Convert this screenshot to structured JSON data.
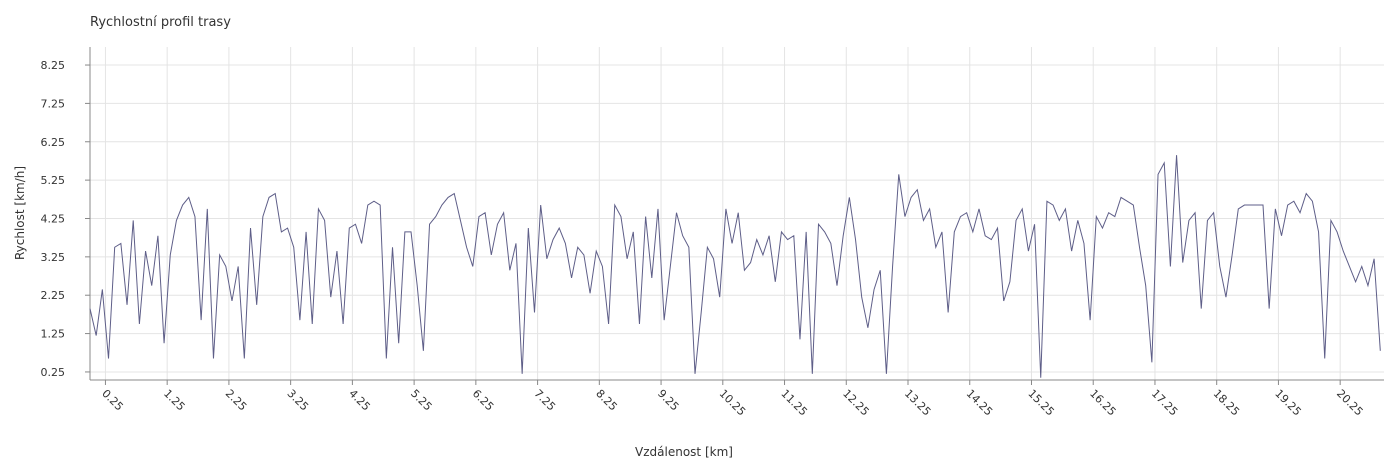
{
  "chart_data": {
    "type": "line",
    "title": "Rychlostní profil trasy",
    "x_label": "Vzdálenost [km]",
    "y_label": "Rychlost [km/h]",
    "xlim": [
      0,
      20.96
    ],
    "ylim": [
      0.04,
      8.72
    ],
    "xticks": [
      0.25,
      1.25,
      2.25,
      3.25,
      4.25,
      5.25,
      6.25,
      7.25,
      8.25,
      9.25,
      10.25,
      11.25,
      12.25,
      13.25,
      14.25,
      15.25,
      16.25,
      17.25,
      18.25,
      19.25,
      20.25
    ],
    "yticks": [
      0.25,
      1.25,
      2.25,
      3.25,
      4.25,
      5.25,
      6.25,
      7.25,
      8.25
    ],
    "grid": true,
    "x": [
      0,
      0.1,
      0.2,
      0.3,
      0.4,
      0.5,
      0.6,
      0.7,
      0.8,
      0.9,
      1,
      1.1,
      1.2,
      1.3,
      1.4,
      1.5,
      1.6,
      1.7,
      1.8,
      1.9,
      2,
      2.1,
      2.2,
      2.3,
      2.4,
      2.5,
      2.6,
      2.7,
      2.8,
      2.9,
      3,
      3.1,
      3.2,
      3.3,
      3.4,
      3.5,
      3.6,
      3.7,
      3.8,
      3.9,
      4,
      4.1,
      4.2,
      4.3,
      4.4,
      4.5,
      4.6,
      4.7,
      4.8,
      4.9,
      5,
      5.1,
      5.2,
      5.3,
      5.4,
      5.5,
      5.6,
      5.7,
      5.8,
      5.9,
      6,
      6.1,
      6.2,
      6.3,
      6.4,
      6.5,
      6.6,
      6.7,
      6.8,
      6.9,
      7,
      7.1,
      7.2,
      7.3,
      7.4,
      7.5,
      7.6,
      7.7,
      7.8,
      7.9,
      8,
      8.1,
      8.2,
      8.3,
      8.4,
      8.5,
      8.6,
      8.7,
      8.8,
      8.9,
      9,
      9.1,
      9.2,
      9.3,
      9.4,
      9.5,
      9.6,
      9.7,
      9.8,
      9.9,
      10,
      10.1,
      10.2,
      10.3,
      10.4,
      10.5,
      10.6,
      10.7,
      10.8,
      10.9,
      11,
      11.1,
      11.2,
      11.3,
      11.4,
      11.5,
      11.6,
      11.7,
      11.8,
      11.9,
      12,
      12.1,
      12.2,
      12.3,
      12.4,
      12.5,
      12.6,
      12.7,
      12.8,
      12.9,
      13,
      13.1,
      13.2,
      13.3,
      13.4,
      13.5,
      13.6,
      13.7,
      13.8,
      13.9,
      14,
      14.1,
      14.2,
      14.3,
      14.4,
      14.5,
      14.6,
      14.7,
      14.8,
      14.9,
      15,
      15.1,
      15.2,
      15.3,
      15.4,
      15.5,
      15.6,
      15.7,
      15.8,
      15.9,
      16,
      16.1,
      16.2,
      16.3,
      16.4,
      16.5,
      16.6,
      16.7,
      16.8,
      16.9,
      17,
      17.1,
      17.2,
      17.3,
      17.4,
      17.5,
      17.6,
      17.7,
      17.8,
      17.9,
      18,
      18.1,
      18.2,
      18.3,
      18.4,
      18.5,
      18.6,
      18.7,
      18.8,
      18.9,
      19,
      19.1,
      19.2,
      19.3,
      19.4,
      19.5,
      19.6,
      19.7,
      19.8,
      19.9,
      20,
      20.1,
      20.2,
      20.3,
      20.4,
      20.5,
      20.6,
      20.7,
      20.8,
      20.9
    ],
    "series": [
      {
        "color": "#5e5e88",
        "values": [
          1.9,
          1.2,
          2.4,
          0.6,
          3.5,
          3.6,
          2.0,
          4.2,
          1.5,
          3.4,
          2.5,
          3.8,
          1.0,
          3.3,
          4.2,
          4.6,
          4.8,
          4.3,
          1.6,
          4.5,
          0.6,
          3.3,
          3.0,
          2.1,
          3.0,
          0.6,
          4.0,
          2.0,
          4.3,
          4.8,
          4.9,
          3.9,
          4.0,
          3.5,
          1.6,
          3.9,
          1.5,
          4.5,
          4.2,
          2.2,
          3.4,
          1.5,
          4.0,
          4.1,
          3.6,
          4.6,
          4.7,
          4.6,
          0.6,
          3.5,
          1.0,
          3.9,
          3.9,
          2.5,
          0.8,
          4.1,
          4.3,
          4.6,
          4.8,
          4.9,
          4.2,
          3.5,
          3.0,
          4.3,
          4.4,
          3.3,
          4.1,
          4.4,
          2.9,
          3.6,
          0.2,
          4.0,
          1.8,
          4.6,
          3.2,
          3.7,
          4.0,
          3.6,
          2.7,
          3.5,
          3.3,
          2.3,
          3.4,
          3.0,
          1.5,
          4.6,
          4.3,
          3.2,
          3.9,
          1.5,
          4.3,
          2.7,
          4.5,
          1.6,
          3.0,
          4.4,
          3.8,
          3.5,
          0.2,
          1.8,
          3.5,
          3.2,
          2.2,
          4.5,
          3.6,
          4.4,
          2.9,
          3.1,
          3.7,
          3.3,
          3.8,
          2.6,
          3.9,
          3.7,
          3.8,
          1.1,
          3.9,
          0.2,
          4.1,
          3.9,
          3.6,
          2.5,
          3.8,
          4.8,
          3.7,
          2.2,
          1.4,
          2.4,
          2.9,
          0.2,
          3.0,
          5.4,
          4.3,
          4.8,
          5.0,
          4.2,
          4.5,
          3.5,
          3.9,
          1.8,
          3.9,
          4.3,
          4.4,
          3.9,
          4.5,
          3.8,
          3.7,
          4.0,
          2.1,
          2.6,
          4.2,
          4.5,
          3.4,
          4.1,
          0.1,
          4.7,
          4.6,
          4.2,
          4.5,
          3.4,
          4.2,
          3.6,
          1.6,
          4.3,
          4.0,
          4.4,
          4.3,
          4.8,
          4.7,
          4.6,
          3.5,
          2.5,
          0.5,
          5.4,
          5.7,
          3.0,
          5.9,
          3.1,
          4.2,
          4.4,
          1.9,
          4.2,
          4.4,
          3.0,
          2.2,
          3.3,
          4.5,
          4.6,
          4.6,
          4.6,
          4.6,
          1.9,
          4.5,
          3.8,
          4.6,
          4.7,
          4.4,
          4.9,
          4.7,
          3.9,
          0.6,
          4.2,
          3.9,
          3.4,
          3.0,
          2.6,
          3.0,
          2.5,
          3.2,
          0.8
        ]
      }
    ]
  }
}
